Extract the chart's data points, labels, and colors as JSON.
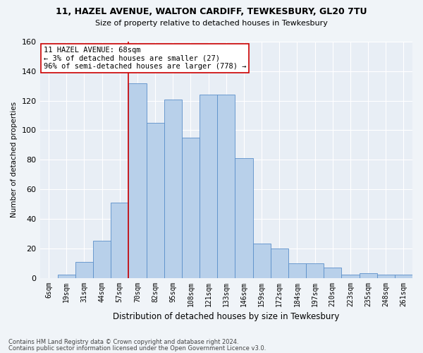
{
  "title1": "11, HAZEL AVENUE, WALTON CARDIFF, TEWKESBURY, GL20 7TU",
  "title2": "Size of property relative to detached houses in Tewkesbury",
  "xlabel": "Distribution of detached houses by size in Tewkesbury",
  "ylabel": "Number of detached properties",
  "categories": [
    "6sqm",
    "19sqm",
    "31sqm",
    "44sqm",
    "57sqm",
    "70sqm",
    "82sqm",
    "95sqm",
    "108sqm",
    "121sqm",
    "133sqm",
    "146sqm",
    "159sqm",
    "172sqm",
    "184sqm",
    "197sqm",
    "210sqm",
    "223sqm",
    "235sqm",
    "248sqm",
    "261sqm"
  ],
  "values": [
    0,
    2,
    11,
    25,
    51,
    132,
    105,
    121,
    95,
    124,
    124,
    81,
    23,
    20,
    10,
    10,
    7,
    2,
    3,
    2,
    2
  ],
  "bar_color": "#b8d0ea",
  "bar_edge_color": "#5b8fc9",
  "bg_color": "#e8eef5",
  "grid_color": "#ffffff",
  "vline_x_idx": 4.5,
  "vline_color": "#cc0000",
  "annotation_text": "11 HAZEL AVENUE: 68sqm\n← 3% of detached houses are smaller (27)\n96% of semi-detached houses are larger (778) →",
  "annotation_box_color": "#ffffff",
  "annotation_box_edge": "#cc0000",
  "ylim": [
    0,
    160
  ],
  "yticks": [
    0,
    20,
    40,
    60,
    80,
    100,
    120,
    140,
    160
  ],
  "footnote1": "Contains HM Land Registry data © Crown copyright and database right 2024.",
  "footnote2": "Contains public sector information licensed under the Open Government Licence v3.0."
}
